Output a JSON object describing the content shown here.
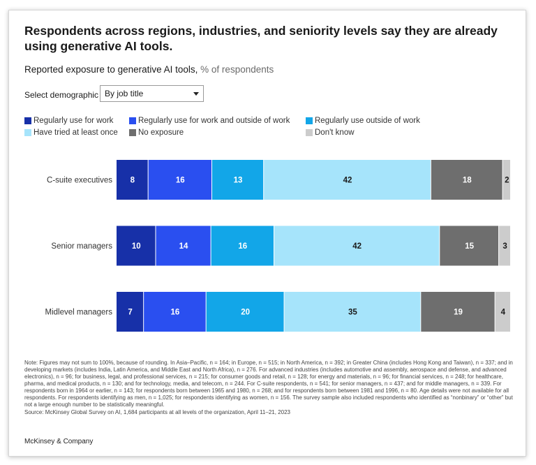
{
  "title": "Respondents across regions, industries, and seniority levels say they are already using generative AI tools.",
  "subtitle": "Reported exposure to generative AI tools,",
  "subtitle_unit": "% of respondents",
  "select": {
    "label": "Select demographic",
    "value": "By job title"
  },
  "colors": {
    "regular_work": "#1730a8",
    "regular_both": "#2a4ff0",
    "regular_outside": "#12a6e8",
    "tried": "#a6e4fb",
    "no_exposure": "#6e6e6e",
    "dont_know": "#cccccc"
  },
  "chart_data": {
    "type": "bar",
    "orientation": "horizontal",
    "stacked": true,
    "categories": [
      "C-suite executives",
      "Senior managers",
      "Midlevel managers"
    ],
    "series": [
      {
        "name": "Regularly use for work",
        "color": "#1730a8",
        "label_color": "#ffffff",
        "values": [
          8,
          10,
          7
        ]
      },
      {
        "name": "Regularly use for work and outside of work",
        "color": "#2a4ff0",
        "label_color": "#ffffff",
        "values": [
          16,
          14,
          16
        ]
      },
      {
        "name": "Regularly use outside of work",
        "color": "#12a6e8",
        "label_color": "#ffffff",
        "values": [
          13,
          16,
          20
        ]
      },
      {
        "name": "Have tried at least once",
        "color": "#a6e4fb",
        "label_color": "#1a1a1a",
        "values": [
          42,
          42,
          35
        ]
      },
      {
        "name": "No exposure",
        "color": "#6e6e6e",
        "label_color": "#ffffff",
        "values": [
          18,
          15,
          19
        ]
      },
      {
        "name": "Don't know",
        "color": "#cccccc",
        "label_color": "#1a1a1a",
        "values": [
          2,
          3,
          4
        ]
      }
    ],
    "grid": false,
    "legend_position": "top"
  },
  "note": "Note: Figures may not sum to 100%, because of rounding. In Asia–Pacific, n = 164; in Europe, n = 515; in North America, n = 392; in Greater China (includes Hong Kong and Taiwan), n = 337; and in developing markets (includes India, Latin America, and Middle East and North Africa), n = 276. For advanced industries (includes automotive and assembly, aerospace and defense, and advanced electronics), n = 96; for business, legal, and professional services, n = 215; for consumer goods and retail, n = 128; for energy and materials, n = 96; for financial services, n = 248; for healthcare, pharma, and medical products, n = 130; and for technology, media, and telecom, n = 244. For C-suite respondents, n = 541; for senior managers, n = 437; and for middle managers, n = 339. For respondents born in 1964 or earlier, n = 143; for respondents born between 1965 and 1980, n = 268; and for respondents born between 1981 and 1996, n = 80. Age details were not available for all respondents. For respondents identifying as men, n = 1,025; for respondents identifying as women, n = 156. The survey sample also included respondents who identified as “nonbinary” or “other” but not a large enough number to be statistically meaningful.",
  "source": "Source: McKinsey Global Survey on AI, 1,684 participants at all levels of the organization, April 11–21, 2023",
  "brand": "McKinsey & Company"
}
